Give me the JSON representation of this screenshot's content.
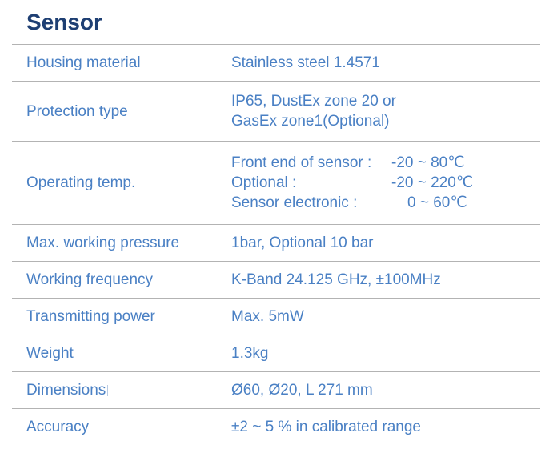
{
  "title": "Sensor",
  "rows": [
    {
      "label": "Housing material",
      "value": "Stainless steel 1.4571"
    },
    {
      "label": "Protection type",
      "lines": [
        "IP65, DustEx zone 20 or",
        "GasEx zone1(Optional)"
      ]
    },
    {
      "label": "Operating temp.",
      "temps": [
        {
          "k": "Front end of sensor :",
          "v": "-20 ~ 80℃"
        },
        {
          "k": "Optional :",
          "v": "-20 ~ 220℃"
        },
        {
          "k": "Sensor electronic :",
          "v": "0 ~ 60℃"
        }
      ]
    },
    {
      "label": "Max. working pressure",
      "value": "1bar, Optional 10 bar"
    },
    {
      "label": "Working frequency",
      "value": "K-Band 24.125 GHz, ±100MHz"
    },
    {
      "label": "Transmitting power",
      "value": "Max. 5mW"
    },
    {
      "label": "Weight",
      "value": "1.3kg"
    },
    {
      "label": "Dimensions",
      "value": "Ø60, Ø20, L 271 mm"
    },
    {
      "label": "Accuracy",
      "value": "±2 ~ 5 % in calibrated range"
    }
  ]
}
